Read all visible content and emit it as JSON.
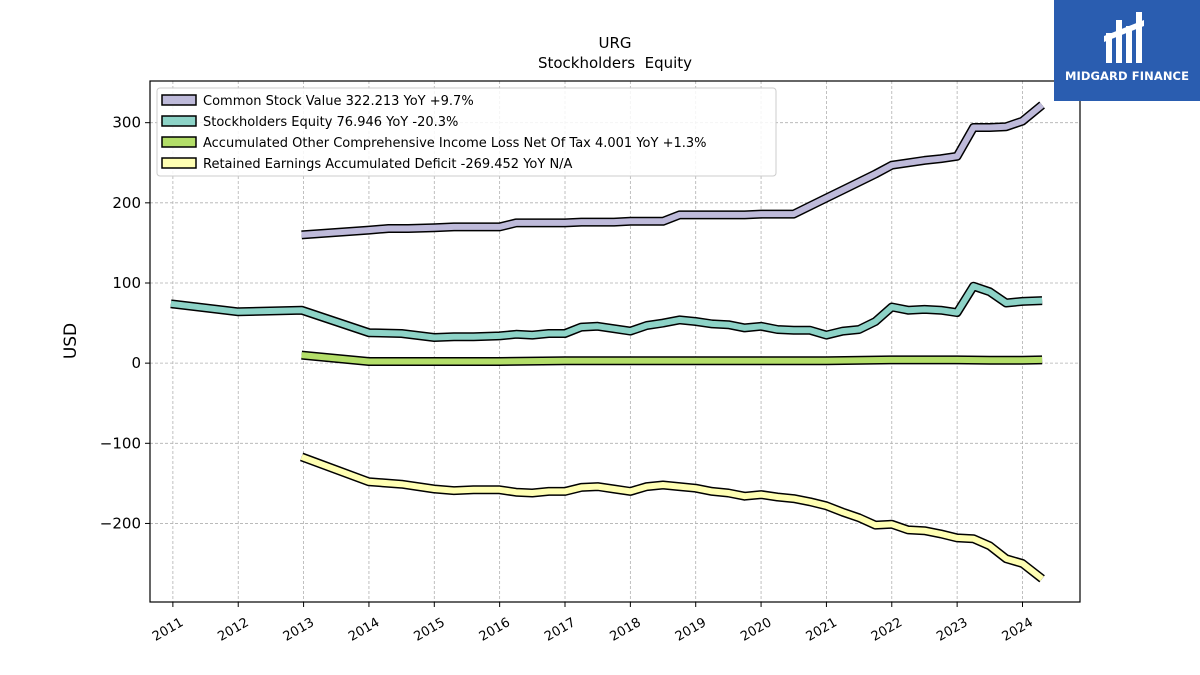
{
  "logo": {
    "text": "MIDGARD FINANCE"
  },
  "chart_data": {
    "type": "line",
    "title": "URG",
    "subtitle": "Stockholders  Equity",
    "ylabel": "USD",
    "xlabel": "",
    "xlim": [
      2010.65,
      2024.88
    ],
    "ylim": [
      -298,
      352
    ],
    "yticks": [
      300,
      200,
      100,
      0,
      -100,
      -200
    ],
    "ytick_labels": [
      "300",
      "200",
      "100",
      "0",
      "−100",
      "−200"
    ],
    "xticks": [
      2011,
      2012,
      2013,
      2014,
      2015,
      2016,
      2017,
      2018,
      2019,
      2020,
      2021,
      2022,
      2023,
      2024
    ],
    "xtick_labels": [
      "2011",
      "2012",
      "2013",
      "2014",
      "2015",
      "2016",
      "2017",
      "2018",
      "2019",
      "2020",
      "2021",
      "2022",
      "2023",
      "2024"
    ],
    "grid": true,
    "legend_position": "top-left",
    "series": [
      {
        "name": "Common Stock Value  322.213 YoY +9.7%",
        "color": "#bebada",
        "x": [
          2012.97,
          2014.0,
          2014.3,
          2014.6,
          2015.0,
          2015.3,
          2015.6,
          2016.0,
          2016.25,
          2016.5,
          2016.75,
          2017.0,
          2017.25,
          2017.5,
          2017.75,
          2018.0,
          2018.25,
          2018.5,
          2018.75,
          2019.0,
          2019.25,
          2019.5,
          2019.75,
          2020.0,
          2020.25,
          2020.5,
          2020.75,
          2021.0,
          2021.25,
          2021.5,
          2021.75,
          2022.0,
          2022.25,
          2022.5,
          2022.75,
          2023.0,
          2023.25,
          2023.5,
          2023.75,
          2024.0,
          2024.3
        ],
        "values": [
          160,
          166,
          168,
          168,
          169,
          170,
          170,
          170,
          175,
          175,
          175,
          175,
          176,
          176,
          176,
          177,
          177,
          177,
          185,
          185,
          185,
          185,
          185,
          186,
          186,
          186,
          196,
          206,
          216,
          226,
          236,
          247,
          250,
          253,
          255,
          258,
          294,
          294,
          295,
          302,
          322
        ]
      },
      {
        "name": "Stockholders Equity  76.946 YoY -20.3%",
        "color": "#8dd3c7",
        "x": [
          2010.97,
          2012.0,
          2012.97,
          2014.0,
          2014.5,
          2015.0,
          2015.3,
          2015.6,
          2016.0,
          2016.25,
          2016.5,
          2016.75,
          2017.0,
          2017.25,
          2017.5,
          2017.75,
          2018.0,
          2018.25,
          2018.5,
          2018.75,
          2019.0,
          2019.25,
          2019.5,
          2019.75,
          2020.0,
          2020.25,
          2020.5,
          2020.75,
          2021.0,
          2021.25,
          2021.5,
          2021.75,
          2022.0,
          2022.25,
          2022.5,
          2022.75,
          2023.0,
          2023.25,
          2023.5,
          2023.75,
          2024.0,
          2024.3
        ],
        "values": [
          74,
          64,
          66,
          38,
          37,
          32,
          33,
          33,
          34,
          36,
          35,
          37,
          37,
          45,
          46,
          43,
          40,
          47,
          50,
          54,
          52,
          49,
          48,
          44,
          46,
          42,
          41,
          41,
          35,
          40,
          42,
          52,
          70,
          66,
          67,
          66,
          63,
          96,
          89,
          75,
          77,
          78
        ]
      },
      {
        "name": "Accumulated Other Comprehensive Income Loss Net Of Tax  4.001 YoY +1.3%",
        "color": "#b3de69",
        "x": [
          2012.97,
          2014.0,
          2015.0,
          2016.0,
          2017.0,
          2018.0,
          2019.0,
          2020.0,
          2021.0,
          2022.0,
          2023.0,
          2023.5,
          2024.0,
          2024.3
        ],
        "values": [
          10,
          2,
          2,
          2,
          3,
          3,
          3,
          3,
          3,
          4,
          4,
          3.5,
          3.5,
          4
        ]
      },
      {
        "name": "Retained Earnings Accumulated Deficit  -269.452 YoY N/A",
        "color": "#ffffb3",
        "x": [
          2012.97,
          2014.0,
          2014.5,
          2015.0,
          2015.3,
          2015.6,
          2016.0,
          2016.25,
          2016.5,
          2016.75,
          2017.0,
          2017.25,
          2017.5,
          2017.75,
          2018.0,
          2018.25,
          2018.5,
          2018.75,
          2019.0,
          2019.25,
          2019.5,
          2019.75,
          2020.0,
          2020.25,
          2020.5,
          2020.75,
          2021.0,
          2021.25,
          2021.5,
          2021.75,
          2022.0,
          2022.25,
          2022.5,
          2022.75,
          2023.0,
          2023.25,
          2023.5,
          2023.75,
          2024.0,
          2024.3
        ],
        "values": [
          -117,
          -148,
          -151,
          -157,
          -159,
          -158,
          -158,
          -161,
          -162,
          -160,
          -160,
          -155,
          -154,
          -157,
          -160,
          -154,
          -152,
          -154,
          -156,
          -160,
          -162,
          -166,
          -164,
          -167,
          -169,
          -173,
          -178,
          -186,
          -193,
          -202,
          -201,
          -208,
          -209,
          -213,
          -218,
          -219,
          -228,
          -244,
          -250,
          -269
        ]
      }
    ]
  }
}
